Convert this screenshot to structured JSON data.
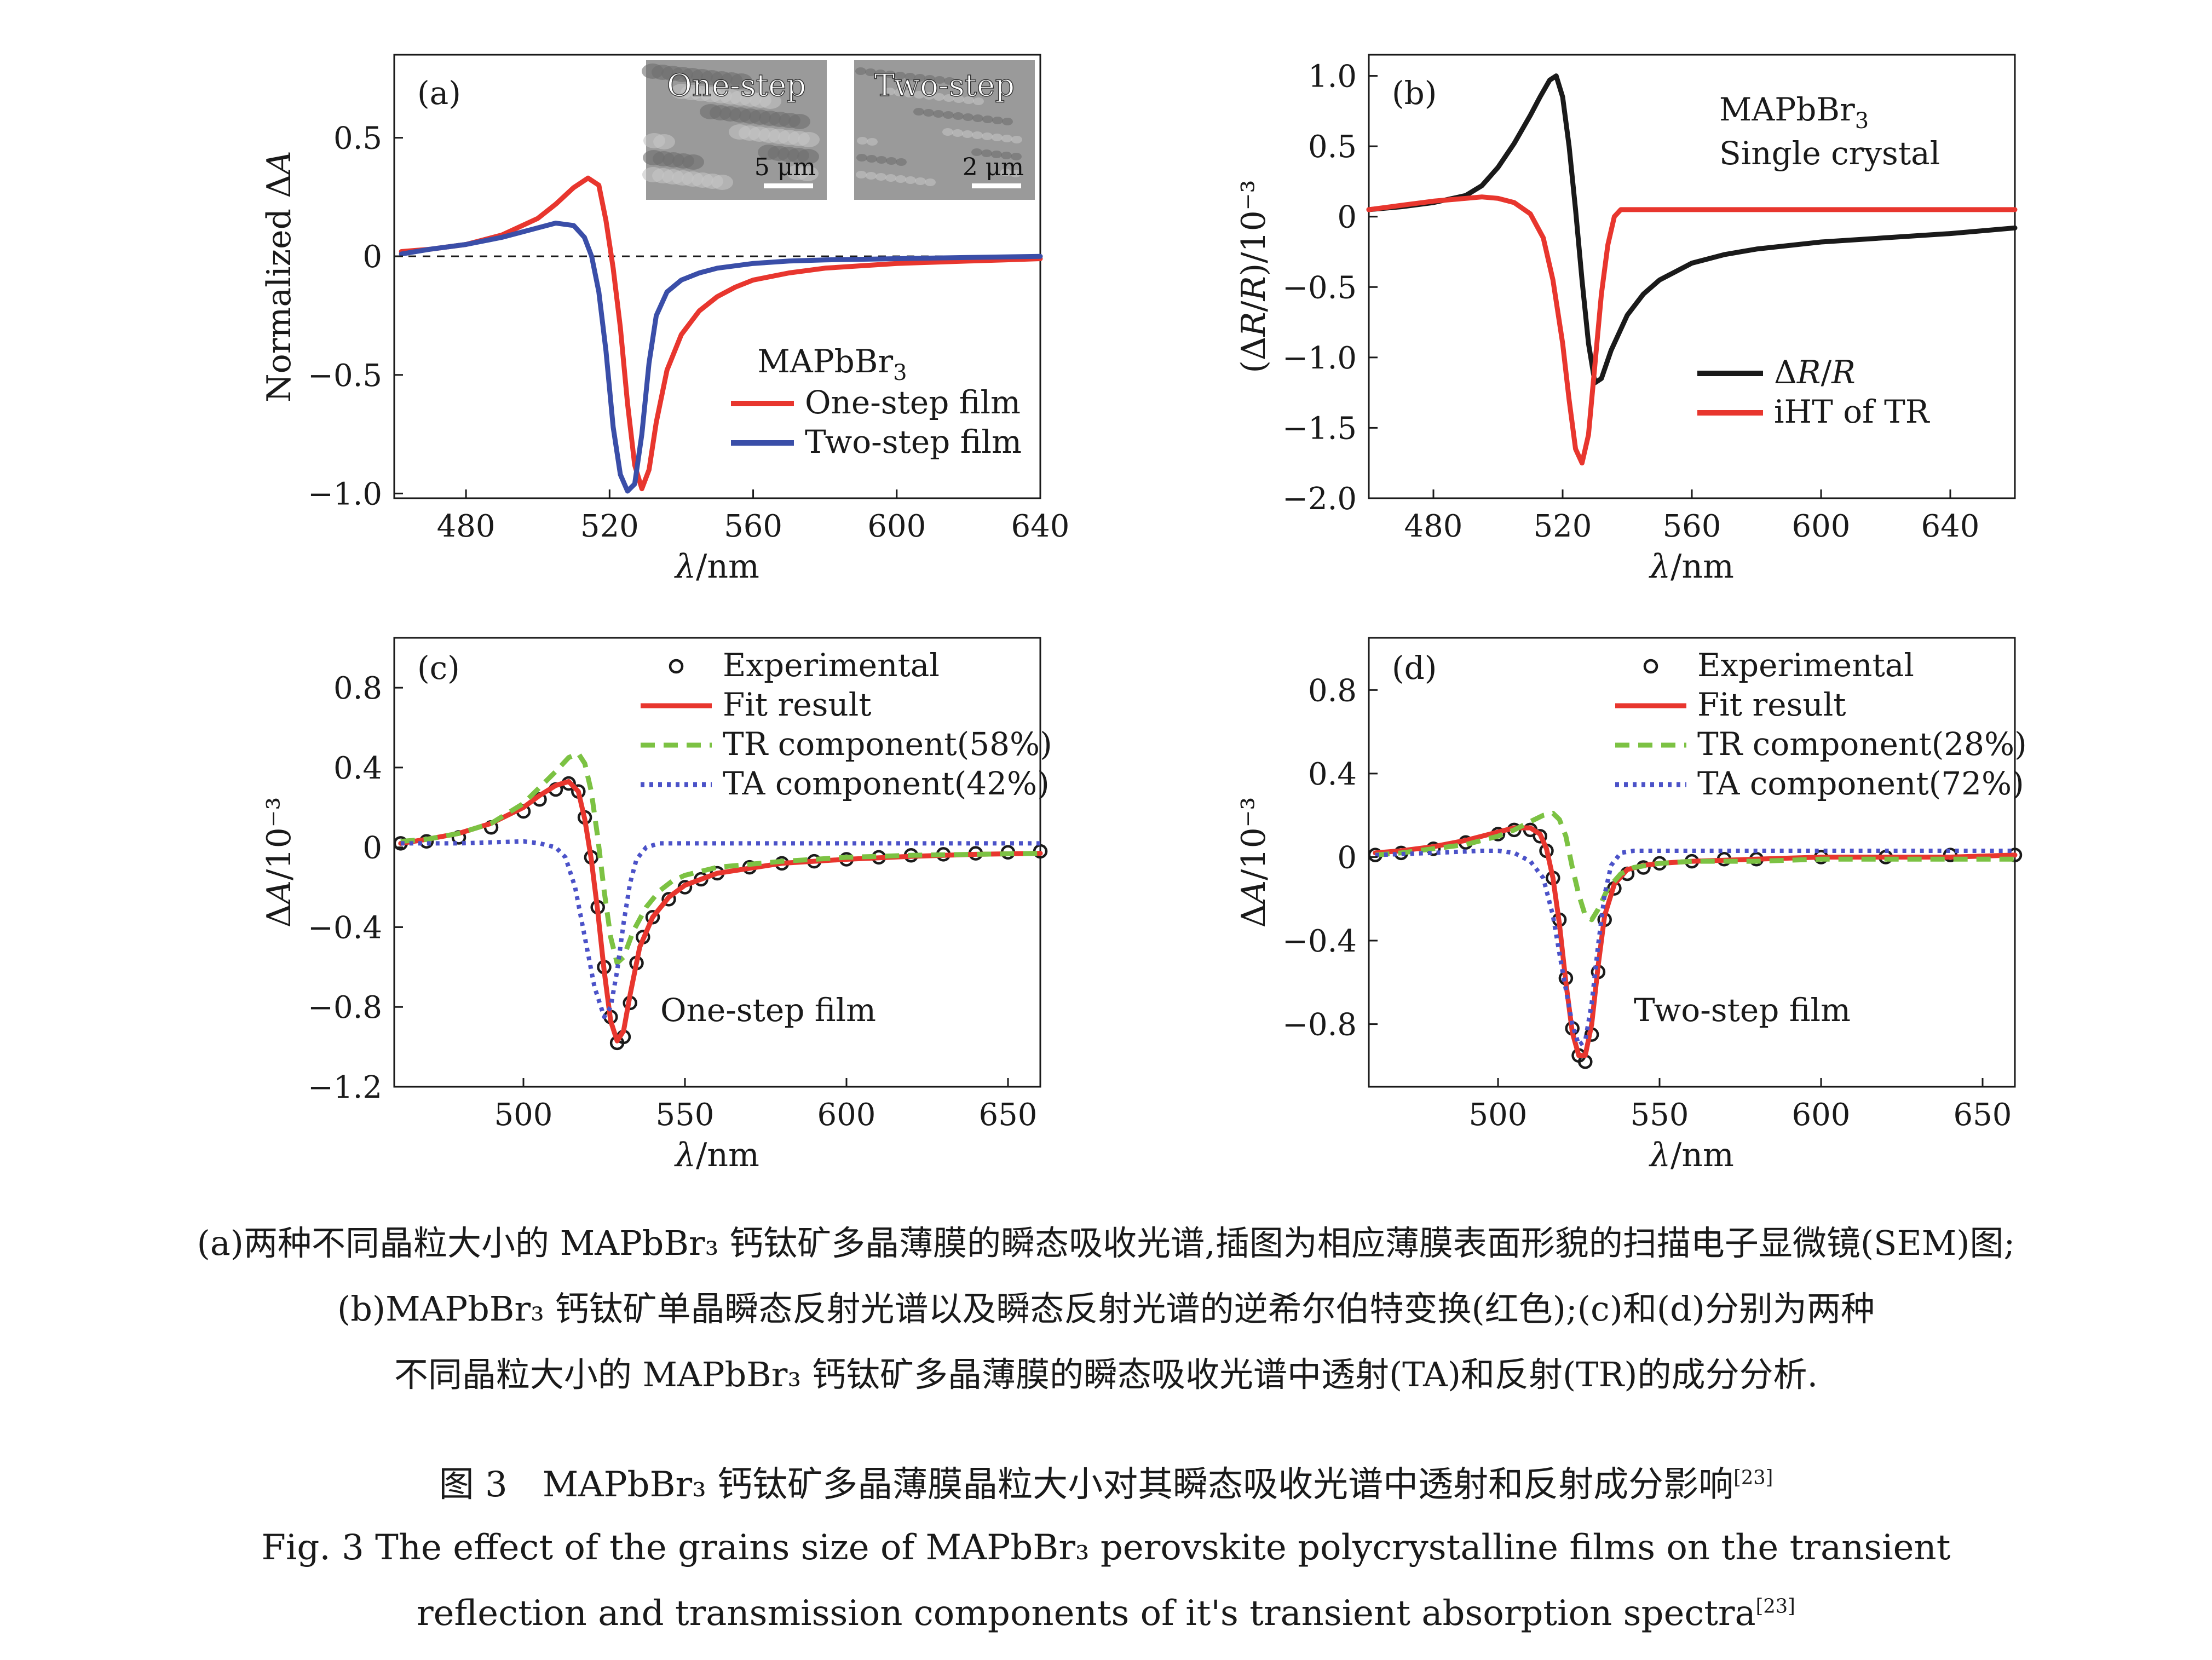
{
  "colors": {
    "red": "#e8362e",
    "blue": "#3a4ea8",
    "black": "#1a1a1a",
    "green": "#7cc243",
    "dotblue": "#4b52c8",
    "sem_gray": "#9a9a9a"
  },
  "panels": {
    "a": {
      "label": "(a)",
      "ylabel": "Normalized ΔA",
      "xlabel": "λ/nm",
      "material": "MAPbBr3",
      "legend": [
        "One-step film",
        "Two-step film"
      ],
      "inset_left": {
        "title": "One-step",
        "scale": "5 μm"
      },
      "inset_right": {
        "title": "Two-step",
        "scale": "2 μm"
      },
      "xticks": [
        "480",
        "520",
        "560",
        "600",
        "640"
      ],
      "yticks": [
        "0.5",
        "0",
        "−0.5",
        "−1.0"
      ]
    },
    "b": {
      "label": "(b)",
      "ylabel": "(ΔR/R)/10⁻³",
      "xlabel": "λ/nm",
      "material": "MAPbBr3",
      "subtitle": "Single crystal",
      "legend": [
        "ΔR/R",
        "iHT of TR"
      ],
      "xticks": [
        "480",
        "520",
        "560",
        "600",
        "640"
      ],
      "yticks": [
        "1.0",
        "0.5",
        "0",
        "−0.5",
        "−1.0",
        "−1.5",
        "−2.0"
      ]
    },
    "c": {
      "label": "(c)",
      "ylabel": "ΔA/10⁻³",
      "xlabel": "λ/nm",
      "film": "One-step film",
      "legend": [
        "Experimental",
        "Fit result",
        "TR component(58%)",
        "TA component(42%)"
      ],
      "xticks": [
        "500",
        "550",
        "600",
        "650"
      ],
      "yticks": [
        "0.8",
        "0.4",
        "0",
        "−0.4",
        "−0.8",
        "−1.2"
      ]
    },
    "d": {
      "label": "(d)",
      "ylabel": "ΔA/10⁻³",
      "xlabel": "λ/nm",
      "film": "Two-step film",
      "legend": [
        "Experimental",
        "Fit result",
        "TR component(28%)",
        "TA component(72%)"
      ],
      "xticks": [
        "500",
        "550",
        "600",
        "650"
      ],
      "yticks": [
        "0.8",
        "0.4",
        "0",
        "−0.4",
        "−0.8"
      ]
    }
  },
  "chart_data": [
    {
      "type": "line",
      "panel": "a",
      "xlabel": "λ/nm",
      "ylabel": "Normalized ΔA",
      "xlim": [
        460,
        640
      ],
      "ylim": [
        -1.02,
        0.85
      ],
      "series": [
        {
          "name": "One-step film",
          "color": "#e8362e",
          "x": [
            462,
            470,
            480,
            490,
            500,
            505,
            510,
            514,
            517,
            519,
            521,
            523,
            525,
            527,
            529,
            531,
            533,
            536,
            540,
            545,
            550,
            555,
            560,
            570,
            580,
            590,
            600,
            610,
            620,
            630,
            640
          ],
          "y": [
            0.02,
            0.03,
            0.05,
            0.09,
            0.16,
            0.22,
            0.29,
            0.33,
            0.3,
            0.15,
            -0.05,
            -0.3,
            -0.62,
            -0.88,
            -0.98,
            -0.9,
            -0.7,
            -0.48,
            -0.33,
            -0.23,
            -0.17,
            -0.13,
            -0.1,
            -0.07,
            -0.05,
            -0.04,
            -0.03,
            -0.025,
            -0.02,
            -0.015,
            -0.01
          ]
        },
        {
          "name": "Two-step film",
          "color": "#3a4ea8",
          "x": [
            462,
            470,
            480,
            490,
            500,
            505,
            510,
            513,
            515,
            517,
            519,
            521,
            523,
            525,
            527,
            529,
            531,
            533,
            536,
            540,
            545,
            550,
            560,
            570,
            580,
            600,
            620,
            640
          ],
          "y": [
            0.01,
            0.03,
            0.05,
            0.08,
            0.12,
            0.14,
            0.13,
            0.08,
            0.0,
            -0.15,
            -0.4,
            -0.72,
            -0.92,
            -0.99,
            -0.96,
            -0.75,
            -0.45,
            -0.25,
            -0.15,
            -0.1,
            -0.07,
            -0.05,
            -0.03,
            -0.02,
            -0.015,
            -0.01,
            -0.005,
            0.0
          ]
        }
      ],
      "reference_line": 0
    },
    {
      "type": "line",
      "panel": "b",
      "xlabel": "λ/nm",
      "ylabel": "(ΔR/R)/10⁻³",
      "xlim": [
        460,
        660
      ],
      "ylim": [
        -2.0,
        1.15
      ],
      "series": [
        {
          "name": "ΔR/R",
          "color": "#1a1a1a",
          "x": [
            460,
            470,
            480,
            490,
            495,
            500,
            505,
            510,
            513,
            516,
            518,
            520,
            522,
            524,
            526,
            528,
            530,
            532,
            535,
            540,
            545,
            550,
            560,
            570,
            580,
            600,
            620,
            640,
            660
          ],
          "y": [
            0.05,
            0.07,
            0.1,
            0.15,
            0.22,
            0.35,
            0.52,
            0.72,
            0.85,
            0.97,
            1.0,
            0.85,
            0.5,
            0.05,
            -0.45,
            -0.9,
            -1.18,
            -1.15,
            -0.95,
            -0.7,
            -0.55,
            -0.45,
            -0.33,
            -0.27,
            -0.23,
            -0.18,
            -0.15,
            -0.12,
            -0.08
          ]
        },
        {
          "name": "iHT of TR",
          "color": "#e8362e",
          "x": [
            460,
            470,
            480,
            490,
            495,
            500,
            505,
            510,
            514,
            517,
            520,
            522,
            524,
            526,
            528,
            530,
            532,
            534,
            536,
            538,
            540,
            545,
            550,
            560,
            580,
            600,
            620,
            640,
            660
          ],
          "y": [
            0.05,
            0.08,
            0.11,
            0.13,
            0.14,
            0.13,
            0.1,
            0.02,
            -0.15,
            -0.45,
            -0.9,
            -1.3,
            -1.65,
            -1.75,
            -1.55,
            -1.05,
            -0.55,
            -0.2,
            0.0,
            0.05,
            0.05,
            0.05,
            0.05,
            0.05,
            0.05,
            0.05,
            0.05,
            0.05,
            0.05
          ]
        }
      ]
    },
    {
      "type": "line",
      "panel": "c",
      "xlabel": "λ/nm",
      "ylabel": "ΔA/10⁻³",
      "xlim": [
        460,
        660
      ],
      "ylim": [
        -1.2,
        1.05
      ],
      "series": [
        {
          "name": "Experimental",
          "color": "#1a1a1a",
          "marker": "circle",
          "x": [
            462,
            470,
            480,
            490,
            500,
            505,
            510,
            514,
            517,
            519,
            521,
            523,
            525,
            527,
            529,
            531,
            533,
            535,
            537,
            540,
            545,
            550,
            555,
            560,
            570,
            580,
            590,
            600,
            610,
            620,
            630,
            640,
            650,
            660
          ],
          "y": [
            0.02,
            0.03,
            0.05,
            0.1,
            0.18,
            0.24,
            0.29,
            0.32,
            0.28,
            0.15,
            -0.05,
            -0.3,
            -0.6,
            -0.85,
            -0.98,
            -0.95,
            -0.78,
            -0.58,
            -0.45,
            -0.35,
            -0.26,
            -0.2,
            -0.16,
            -0.13,
            -0.1,
            -0.08,
            -0.07,
            -0.06,
            -0.05,
            -0.04,
            -0.035,
            -0.03,
            -0.025,
            -0.02
          ]
        },
        {
          "name": "Fit result",
          "color": "#e8362e",
          "x": [
            462,
            470,
            480,
            490,
            500,
            505,
            510,
            514,
            517,
            519,
            521,
            523,
            525,
            527,
            529,
            531,
            533,
            536,
            540,
            545,
            550,
            560,
            580,
            600,
            620,
            640,
            660
          ],
          "y": [
            0.02,
            0.04,
            0.07,
            0.12,
            0.2,
            0.26,
            0.31,
            0.33,
            0.28,
            0.14,
            -0.06,
            -0.32,
            -0.62,
            -0.87,
            -0.97,
            -0.92,
            -0.74,
            -0.5,
            -0.35,
            -0.25,
            -0.19,
            -0.13,
            -0.08,
            -0.06,
            -0.045,
            -0.035,
            -0.03
          ]
        },
        {
          "name": "TR component(58%)",
          "color": "#7cc243",
          "style": "dashed",
          "x": [
            462,
            470,
            480,
            490,
            500,
            505,
            510,
            514,
            517,
            519,
            521,
            523,
            525,
            527,
            529,
            531,
            534,
            538,
            542,
            546,
            550,
            560,
            580,
            600,
            620,
            640,
            660
          ],
          "y": [
            0.03,
            0.04,
            0.07,
            0.12,
            0.22,
            0.3,
            0.38,
            0.45,
            0.47,
            0.42,
            0.28,
            0.05,
            -0.22,
            -0.45,
            -0.58,
            -0.55,
            -0.42,
            -0.3,
            -0.22,
            -0.17,
            -0.14,
            -0.1,
            -0.07,
            -0.05,
            -0.04,
            -0.035,
            -0.03
          ]
        },
        {
          "name": "TA component(42%)",
          "color": "#4b52c8",
          "style": "dotted",
          "x": [
            462,
            480,
            500,
            505,
            510,
            513,
            516,
            519,
            522,
            525,
            527,
            529,
            531,
            533,
            535,
            538,
            542,
            546,
            550,
            560,
            580,
            600,
            620,
            640,
            660
          ],
          "y": [
            0.02,
            0.02,
            0.03,
            0.02,
            0.0,
            -0.05,
            -0.2,
            -0.45,
            -0.7,
            -0.85,
            -0.8,
            -0.62,
            -0.38,
            -0.18,
            -0.06,
            0.0,
            0.02,
            0.02,
            0.02,
            0.02,
            0.02,
            0.02,
            0.02,
            0.02,
            0.02
          ]
        }
      ]
    },
    {
      "type": "line",
      "panel": "d",
      "xlabel": "λ/nm",
      "ylabel": "ΔA/10⁻³",
      "xlim": [
        460,
        660
      ],
      "ylim": [
        -1.1,
        1.05
      ],
      "series": [
        {
          "name": "Experimental",
          "color": "#1a1a1a",
          "marker": "circle",
          "x": [
            462,
            470,
            480,
            490,
            500,
            505,
            510,
            513,
            515,
            517,
            519,
            521,
            523,
            525,
            527,
            529,
            531,
            533,
            536,
            540,
            545,
            550,
            560,
            570,
            580,
            600,
            620,
            640,
            660
          ],
          "y": [
            0.01,
            0.02,
            0.04,
            0.07,
            0.11,
            0.13,
            0.13,
            0.1,
            0.03,
            -0.1,
            -0.3,
            -0.58,
            -0.82,
            -0.95,
            -0.98,
            -0.85,
            -0.55,
            -0.3,
            -0.15,
            -0.08,
            -0.05,
            -0.03,
            -0.02,
            -0.01,
            -0.01,
            0.0,
            0.0,
            0.01,
            0.01
          ]
        },
        {
          "name": "Fit result",
          "color": "#e8362e",
          "x": [
            462,
            470,
            480,
            490,
            500,
            505,
            510,
            513,
            515,
            517,
            519,
            521,
            523,
            525,
            527,
            529,
            531,
            533,
            536,
            540,
            545,
            550,
            560,
            580,
            600,
            620,
            640,
            660
          ],
          "y": [
            0.02,
            0.03,
            0.05,
            0.08,
            0.12,
            0.14,
            0.14,
            0.11,
            0.04,
            -0.1,
            -0.32,
            -0.6,
            -0.84,
            -0.95,
            -0.95,
            -0.8,
            -0.52,
            -0.28,
            -0.13,
            -0.06,
            -0.04,
            -0.03,
            -0.02,
            -0.01,
            0.0,
            0.0,
            0.0,
            0.01
          ]
        },
        {
          "name": "TR component(28%)",
          "color": "#7cc243",
          "style": "dashed",
          "x": [
            462,
            470,
            480,
            490,
            500,
            505,
            510,
            514,
            517,
            519,
            521,
            523,
            525,
            527,
            529,
            531,
            534,
            538,
            542,
            546,
            550,
            560,
            580,
            600,
            620,
            640,
            660
          ],
          "y": [
            0.01,
            0.02,
            0.04,
            0.06,
            0.1,
            0.13,
            0.17,
            0.2,
            0.21,
            0.18,
            0.1,
            -0.05,
            -0.18,
            -0.28,
            -0.3,
            -0.25,
            -0.15,
            -0.08,
            -0.05,
            -0.04,
            -0.03,
            -0.02,
            -0.02,
            -0.01,
            -0.01,
            -0.01,
            -0.01
          ]
        },
        {
          "name": "TA component(72%)",
          "color": "#4b52c8",
          "style": "dotted",
          "x": [
            462,
            480,
            495,
            500,
            505,
            510,
            514,
            517,
            520,
            523,
            525,
            527,
            529,
            531,
            533,
            535,
            538,
            542,
            546,
            550,
            560,
            580,
            600,
            620,
            640,
            660
          ],
          "y": [
            0.01,
            0.02,
            0.03,
            0.03,
            0.02,
            -0.02,
            -0.1,
            -0.28,
            -0.55,
            -0.8,
            -0.9,
            -0.88,
            -0.7,
            -0.42,
            -0.18,
            -0.04,
            0.02,
            0.03,
            0.03,
            0.03,
            0.03,
            0.03,
            0.03,
            0.03,
            0.03,
            0.03
          ]
        }
      ]
    }
  ],
  "caption": {
    "cn_line1": "(a)两种不同晶粒大小的 MAPbBr₃ 钙钛矿多晶薄膜的瞬态吸收光谱,插图为相应薄膜表面形貌的扫描电子显微镜(SEM)图;",
    "cn_line2": "(b)MAPbBr₃ 钙钛矿单晶瞬态反射光谱以及瞬态反射光谱的逆希尔伯特变换(红色);(c)和(d)分别为两种",
    "cn_line3": "不同晶粒大小的 MAPbBr₃ 钙钛矿多晶薄膜的瞬态吸收光谱中透射(TA)和反射(TR)的成分分析.",
    "title_cn": "图 3　MAPbBr₃ 钙钛矿多晶薄膜晶粒大小对其瞬态吸收光谱中透射和反射成分影响",
    "title_cn_ref": "[23]",
    "title_en_1": "Fig. 3   The effect of the grains size of MAPbBr₃ perovskite polycrystalline films on the transient",
    "title_en_2": "reflection and transmission components of it's transient absorption spectra",
    "title_en_ref": "[23]"
  }
}
